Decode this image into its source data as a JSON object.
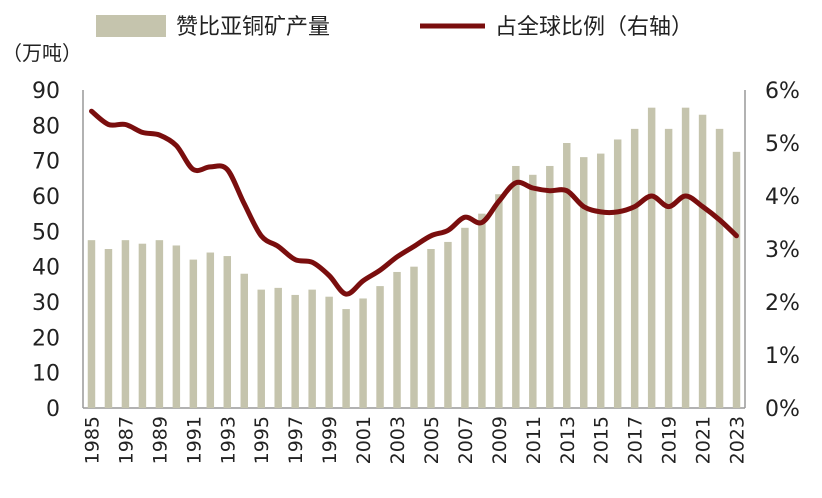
{
  "colors": {
    "bar": "#c5c4ad",
    "line": "#7a0e0e",
    "axis": "#999999",
    "text": "#222222"
  },
  "chart_data": {
    "type": "bar",
    "unit_label": "（万吨）",
    "x": [
      1985,
      1986,
      1987,
      1988,
      1989,
      1990,
      1991,
      1992,
      1993,
      1994,
      1995,
      1996,
      1997,
      1998,
      1999,
      2000,
      2001,
      2002,
      2003,
      2004,
      2005,
      2006,
      2007,
      2008,
      2009,
      2010,
      2011,
      2012,
      2013,
      2014,
      2015,
      2016,
      2017,
      2018,
      2019,
      2020,
      2021,
      2022,
      2023
    ],
    "xtick_labels": [
      "1985",
      "1987",
      "1989",
      "1991",
      "1993",
      "1995",
      "1997",
      "1999",
      "2001",
      "2003",
      "2005",
      "2007",
      "2009",
      "2011",
      "2013",
      "2015",
      "2017",
      "2019",
      "2021",
      "2023"
    ],
    "ylim_left": [
      0,
      90
    ],
    "yticks_left": [
      "0",
      "10",
      "20",
      "30",
      "40",
      "50",
      "60",
      "70",
      "80",
      "90"
    ],
    "ylim_right": [
      0,
      6
    ],
    "yticks_right": [
      "0%",
      "1%",
      "2%",
      "3%",
      "4%",
      "5%",
      "6%"
    ],
    "legend_placement": "top",
    "series": [
      {
        "name": "赞比亚铜矿产量",
        "kind": "bar",
        "axis": "left",
        "values": [
          47.5,
          45,
          47.5,
          46.5,
          47.5,
          46,
          42,
          44,
          43,
          38,
          33.5,
          34,
          32,
          33.5,
          31.5,
          28,
          31,
          34.5,
          38.5,
          40,
          45,
          47,
          51,
          55,
          60.5,
          68.5,
          66,
          68.5,
          75,
          71,
          72,
          76,
          79,
          85,
          79,
          85,
          83,
          79,
          72.5
        ]
      },
      {
        "name": "占全球比例（右轴）",
        "kind": "line",
        "axis": "right",
        "values": [
          5.6,
          5.35,
          5.35,
          5.2,
          5.15,
          4.95,
          4.5,
          4.55,
          4.5,
          3.85,
          3.25,
          3.05,
          2.8,
          2.75,
          2.5,
          2.15,
          2.4,
          2.6,
          2.85,
          3.05,
          3.25,
          3.35,
          3.6,
          3.5,
          3.9,
          4.25,
          4.15,
          4.1,
          4.1,
          3.8,
          3.7,
          3.7,
          3.8,
          4.0,
          3.8,
          4.0,
          3.8,
          3.55,
          3.25
        ]
      }
    ]
  }
}
